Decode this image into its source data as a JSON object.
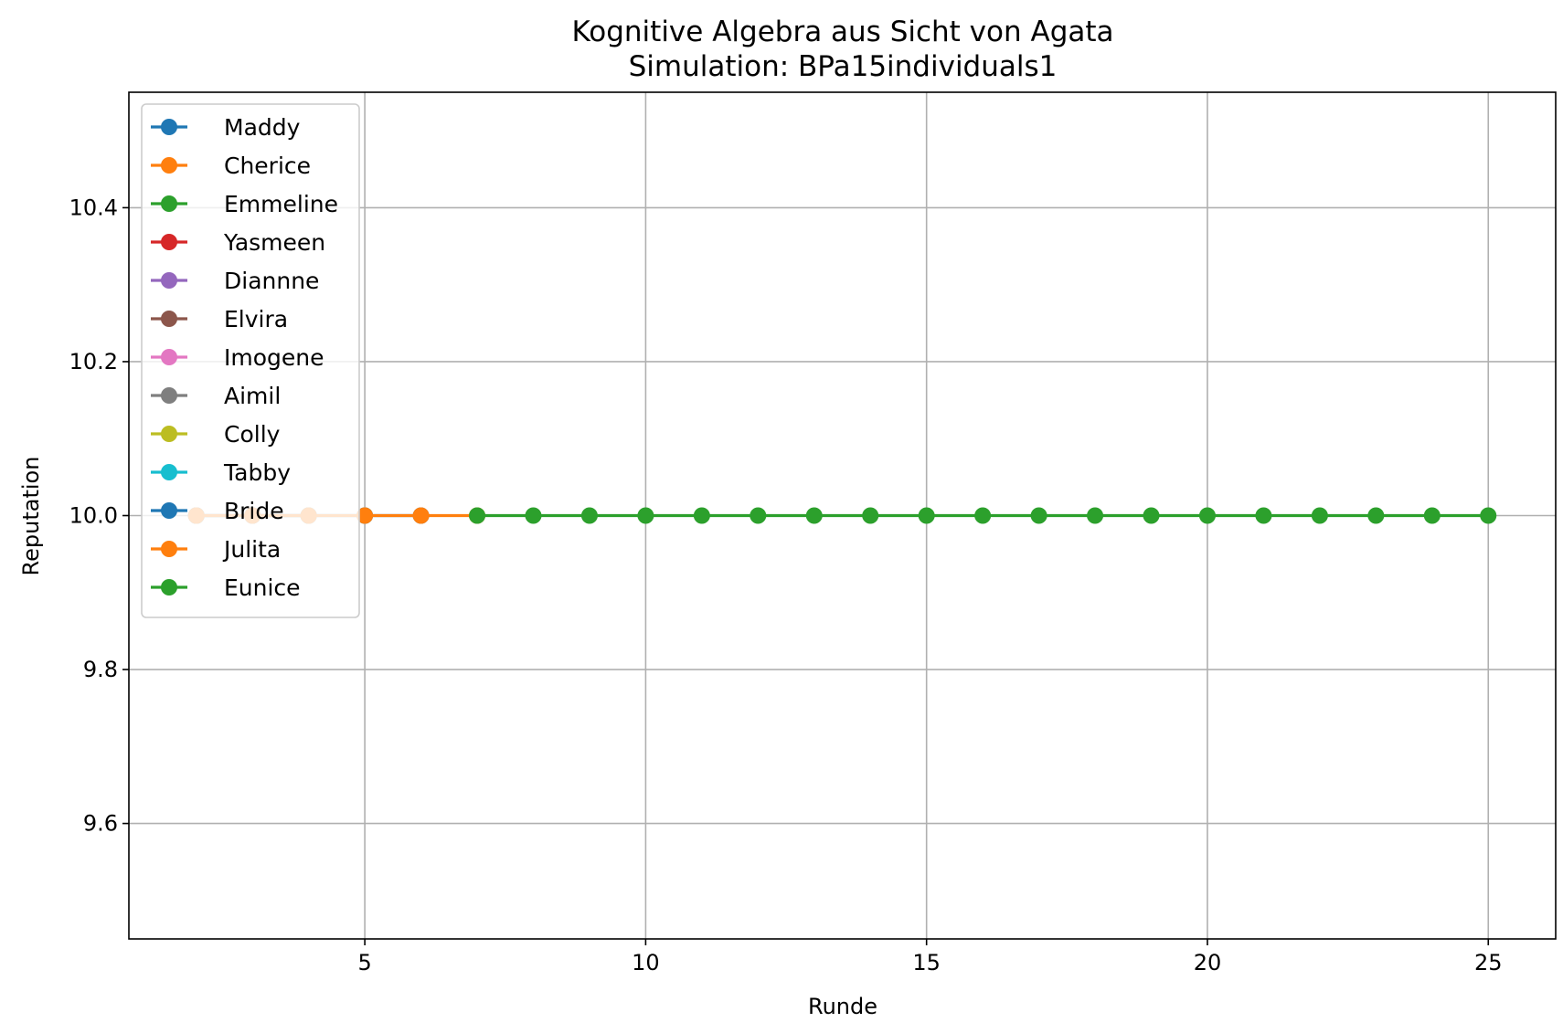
{
  "chart_data": {
    "type": "line",
    "title": "Kognitive Algebra aus Sicht von Agata",
    "subtitle": "Simulation: BPa15individuals1",
    "xlabel": "Runde",
    "ylabel": "Reputation",
    "xlim": [
      0.8,
      26.2
    ],
    "ylim": [
      9.45,
      10.55
    ],
    "xticks": [
      5,
      10,
      15,
      20,
      25
    ],
    "yticks": [
      9.6,
      9.8,
      10.0,
      10.2,
      10.4
    ],
    "xtick_labels": [
      "5",
      "10",
      "15",
      "20",
      "25"
    ],
    "ytick_labels": [
      "9.6",
      "9.8",
      "10.0",
      "10.2",
      "10.4"
    ],
    "grid": true,
    "legend_position": "upper-left",
    "series": [
      {
        "name": "Maddy",
        "color": "#1f77b4",
        "x": [
          2
        ],
        "y": [
          10.0
        ]
      },
      {
        "name": "Cherice",
        "color": "#ff7f0e",
        "x": [
          2
        ],
        "y": [
          10.0
        ]
      },
      {
        "name": "Emmeline",
        "color": "#2ca02c",
        "x": [
          2
        ],
        "y": [
          10.0
        ]
      },
      {
        "name": "Yasmeen",
        "color": "#d62728",
        "x": [
          2
        ],
        "y": [
          10.0
        ]
      },
      {
        "name": "Diannne",
        "color": "#9467bd",
        "x": [
          2
        ],
        "y": [
          10.0
        ]
      },
      {
        "name": "Elvira",
        "color": "#8c564b",
        "x": [
          2
        ],
        "y": [
          10.0
        ]
      },
      {
        "name": "Imogene",
        "color": "#e377c2",
        "x": [
          2,
          3,
          4
        ],
        "y": [
          10.0,
          10.0,
          10.0
        ]
      },
      {
        "name": "Aimil",
        "color": "#7f7f7f",
        "x": [
          2,
          3,
          4
        ],
        "y": [
          10.0,
          10.0,
          10.0
        ]
      },
      {
        "name": "Colly",
        "color": "#bcbd22",
        "x": [
          2,
          3,
          4
        ],
        "y": [
          10.0,
          10.0,
          10.0
        ]
      },
      {
        "name": "Tabby",
        "color": "#17becf",
        "x": [
          2,
          3,
          4,
          5
        ],
        "y": [
          10.0,
          10.0,
          10.0,
          10.0
        ]
      },
      {
        "name": "Bride",
        "color": "#1f77b4",
        "x": [
          2,
          3,
          4,
          5,
          6
        ],
        "y": [
          10.0,
          10.0,
          10.0,
          10.0,
          10.0
        ]
      },
      {
        "name": "Julita",
        "color": "#ff7f0e",
        "x": [
          2,
          3,
          4,
          5,
          6,
          7
        ],
        "y": [
          10.0,
          10.0,
          10.0,
          10.0,
          10.0,
          10.0
        ]
      },
      {
        "name": "Eunice",
        "color": "#2ca02c",
        "x": [
          7,
          8,
          9,
          10,
          11,
          12,
          13,
          14,
          15,
          16,
          17,
          18,
          19,
          20,
          21,
          22,
          23,
          24,
          25
        ],
        "y": [
          10.0,
          10.0,
          10.0,
          10.0,
          10.0,
          10.0,
          10.0,
          10.0,
          10.0,
          10.0,
          10.0,
          10.0,
          10.0,
          10.0,
          10.0,
          10.0,
          10.0,
          10.0,
          10.0
        ]
      }
    ]
  }
}
